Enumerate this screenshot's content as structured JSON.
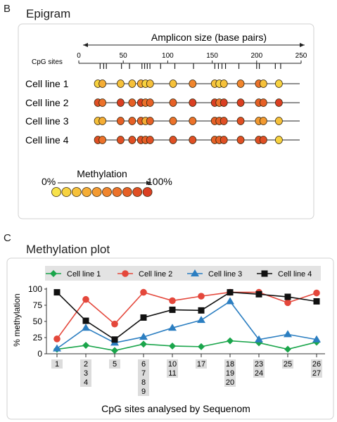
{
  "panel_b": {
    "letter": "B",
    "title": "Epigram",
    "axis_title": "Amplicon size (base pairs)",
    "cpg_label": "CpG sites",
    "methylation_label": "Methylation",
    "scale_min_label": "0%",
    "scale_max_label": "100%"
  },
  "panel_c": {
    "letter": "C",
    "title": "Methylation plot"
  },
  "colors": {
    "scale": [
      "#f7e24a",
      "#f7d23f",
      "#f6c13a",
      "#f5ad35",
      "#f39a31",
      "#f0852d",
      "#ec722a",
      "#e66026",
      "#e04f24",
      "#da3f22"
    ],
    "line_1": "#1aa54b",
    "line_2": "#e4473b",
    "line_3": "#2b7ec1",
    "line_4": "#111111",
    "legend_bg": "#e3e3e3",
    "tick_bg": "#dcdcdc"
  },
  "chart_data": [
    {
      "type": "scatter",
      "title": "Epigram",
      "xlabel": "Amplicon size (base pairs)",
      "xlim": [
        0,
        250
      ],
      "x_ticks": [
        0,
        50,
        100,
        150,
        200,
        250
      ],
      "cpg_sites": [
        24,
        28,
        31,
        48,
        57,
        71,
        74,
        77,
        80,
        92,
        108,
        129,
        153,
        157,
        161,
        165,
        180,
        200,
        203,
        221,
        227
      ],
      "rows": [
        "Cell line 1",
        "Cell line 2",
        "Cell line 3",
        "Cell line 4"
      ],
      "groups": [
        {
          "position": 24,
          "circles": 2
        },
        {
          "position": 47,
          "circles": 1
        },
        {
          "position": 60,
          "circles": 1
        },
        {
          "position": 75,
          "circles": 3
        },
        {
          "position": 106,
          "circles": 1
        },
        {
          "position": 128,
          "circles": 1
        },
        {
          "position": 158,
          "circles": 3
        },
        {
          "position": 182,
          "circles": 1
        },
        {
          "position": 205,
          "circles": 2
        },
        {
          "position": 225,
          "circles": 1
        }
      ],
      "methylation_levels": [
        [
          1,
          3,
          2,
          2,
          3,
          1,
          2,
          2,
          5,
          2,
          1,
          2,
          5,
          6,
          2,
          1
        ],
        [
          8,
          6,
          9,
          7,
          9,
          6,
          7,
          7,
          9,
          9,
          6,
          9,
          9,
          7,
          7,
          9
        ],
        [
          2,
          3,
          7,
          7,
          7,
          3,
          7,
          6,
          6,
          7,
          7,
          8,
          8,
          4,
          4,
          2
        ],
        [
          8,
          6,
          8,
          8,
          8,
          7,
          8,
          8,
          8,
          7,
          7,
          8,
          8,
          8,
          8,
          1
        ]
      ],
      "scale_labels": [
        "0%",
        "100%"
      ]
    },
    {
      "type": "line",
      "title": "Methylation plot",
      "ylabel": "% methylation",
      "xlabel": "CpG sites analysed by Sequenom",
      "ylim": [
        0,
        100
      ],
      "y_ticks": [
        0,
        25,
        50,
        75,
        100
      ],
      "categories": [
        [
          "1"
        ],
        [
          "2",
          "3",
          "4"
        ],
        [
          "5"
        ],
        [
          "6",
          "7",
          "8",
          "9"
        ],
        [
          "10",
          "11"
        ],
        [
          "17"
        ],
        [
          "18",
          "19",
          "20"
        ],
        [
          "23",
          "24"
        ],
        [
          "25"
        ],
        [
          "26",
          "27"
        ]
      ],
      "legend_position": "top",
      "series": [
        {
          "name": "Cell line 1",
          "marker": "diamond",
          "values": [
            7,
            13,
            5,
            15,
            12,
            11,
            20,
            17,
            7,
            18
          ]
        },
        {
          "name": "Cell line 2",
          "marker": "circle",
          "values": [
            23,
            84,
            46,
            95,
            82,
            89,
            95,
            95,
            79,
            94
          ]
        },
        {
          "name": "Cell line 3",
          "marker": "triangle",
          "values": [
            8,
            40,
            17,
            26,
            40,
            52,
            81,
            22,
            30,
            22
          ]
        },
        {
          "name": "Cell line 4",
          "marker": "square",
          "values": [
            95,
            51,
            22,
            56,
            68,
            67,
            95,
            92,
            88,
            81
          ]
        }
      ]
    }
  ]
}
